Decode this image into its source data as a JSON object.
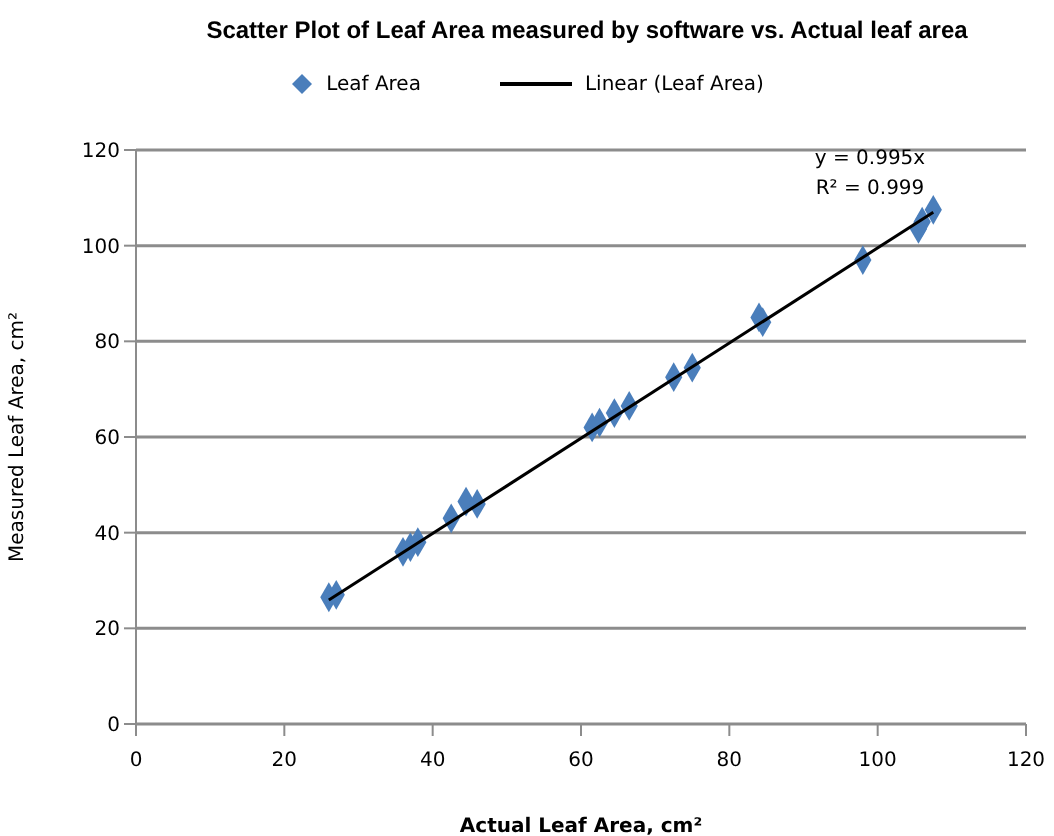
{
  "chart_data": {
    "type": "scatter",
    "title": "Scatter Plot of Leaf Area measured by software vs. Actual leaf area",
    "xlabel": "Actual Leaf Area, cm²",
    "ylabel": "Measured Leaf Area, cm²",
    "x": [
      26,
      27,
      36,
      37,
      38,
      42.5,
      44.5,
      46,
      61.5,
      62.5,
      64.5,
      66.5,
      72.5,
      75,
      84,
      84.5,
      98,
      105.5,
      106,
      107.5
    ],
    "series": [
      {
        "name": "Leaf Area",
        "color": "#4a7ebb",
        "marker": "diamond",
        "values": [
          26.5,
          27,
          36,
          37,
          38,
          43,
          46.5,
          46,
          62,
          63,
          65,
          66.5,
          72.5,
          74.5,
          85,
          84,
          97,
          103.5,
          105,
          107.5
        ]
      },
      {
        "name": "Linear (Leaf Area)",
        "type": "line",
        "color": "#000000",
        "marker": "none",
        "x": [
          26,
          107.5
        ],
        "values": [
          25.9,
          107
        ]
      }
    ],
    "xlim": [
      0,
      120
    ],
    "xticks": [
      0,
      20,
      40,
      60,
      80,
      100,
      120
    ],
    "ylim": [
      0,
      120
    ],
    "yticks": [
      0,
      20,
      40,
      60,
      80,
      100,
      120
    ],
    "grid": "y",
    "legend": "top",
    "annotations": [
      "y = 0.995x",
      "R² = 0.999"
    ]
  }
}
